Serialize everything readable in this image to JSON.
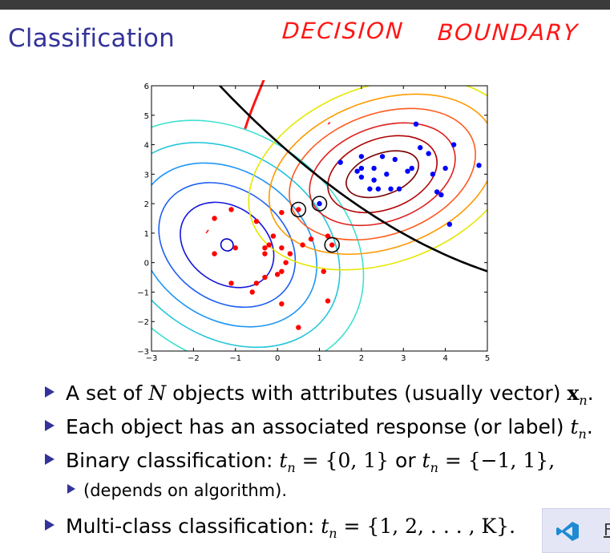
{
  "slide": {
    "title": "Classification",
    "handwriting": {
      "decision": "DECISION",
      "boundary": "BOUNDARY"
    },
    "colors": {
      "title": "#33339a",
      "annotation": "#ff1515",
      "class_a": "#ff0000",
      "class_b": "#0000ff"
    }
  },
  "chart_data": {
    "type": "scatter",
    "xlim": [
      -3,
      5
    ],
    "ylim": [
      -3,
      6
    ],
    "x_ticks": [
      "−3",
      "−2",
      "−1",
      "0",
      "1",
      "2",
      "3",
      "4",
      "5"
    ],
    "y_ticks": [
      "−3",
      "−2",
      "−1",
      "0",
      "1",
      "2",
      "3",
      "4",
      "5",
      "6"
    ],
    "series": [
      {
        "color": "#ff0000",
        "points": [
          [
            -1.5,
            1.5
          ],
          [
            -1.5,
            0.3
          ],
          [
            -1.0,
            0.5
          ],
          [
            -0.5,
            1.4
          ],
          [
            -0.1,
            0.9
          ],
          [
            0.1,
            1.7
          ],
          [
            -0.2,
            0.6
          ],
          [
            -0.3,
            0.5
          ],
          [
            -0.3,
            0.3
          ],
          [
            0.1,
            0.5
          ],
          [
            0.3,
            0.3
          ],
          [
            0.2,
            0.0
          ],
          [
            0.1,
            -0.3
          ],
          [
            0.0,
            -0.4
          ],
          [
            -0.3,
            -0.5
          ],
          [
            -1.1,
            -0.7
          ],
          [
            -0.5,
            -0.7
          ],
          [
            -0.6,
            -1.0
          ],
          [
            0.1,
            -1.4
          ],
          [
            0.5,
            -2.2
          ],
          [
            0.6,
            0.6
          ],
          [
            0.8,
            0.8
          ],
          [
            1.2,
            0.9
          ],
          [
            1.1,
            -0.3
          ],
          [
            1.2,
            -1.3
          ],
          [
            0.5,
            1.8
          ],
          [
            1.3,
            0.6
          ],
          [
            -1.1,
            1.8
          ]
        ]
      },
      {
        "color": "#0000ff",
        "points": [
          [
            1.0,
            2.0
          ],
          [
            1.5,
            3.4
          ],
          [
            2.0,
            3.6
          ],
          [
            2.0,
            3.2
          ],
          [
            1.9,
            3.1
          ],
          [
            2.0,
            2.9
          ],
          [
            2.2,
            2.5
          ],
          [
            2.3,
            2.8
          ],
          [
            2.4,
            2.5
          ],
          [
            2.3,
            3.2
          ],
          [
            2.6,
            3.0
          ],
          [
            2.7,
            2.5
          ],
          [
            2.9,
            2.5
          ],
          [
            2.8,
            3.5
          ],
          [
            3.1,
            3.1
          ],
          [
            3.2,
            3.2
          ],
          [
            3.4,
            3.9
          ],
          [
            3.3,
            4.7
          ],
          [
            3.6,
            3.7
          ],
          [
            3.7,
            3.0
          ],
          [
            3.8,
            2.4
          ],
          [
            3.9,
            2.3
          ],
          [
            4.2,
            4.0
          ],
          [
            4.0,
            3.2
          ],
          [
            4.8,
            3.3
          ],
          [
            4.1,
            1.3
          ],
          [
            2.5,
            3.6
          ]
        ]
      }
    ],
    "circled_points": [
      [
        0.5,
        1.8
      ],
      [
        1.0,
        2.0
      ],
      [
        1.3,
        0.6
      ]
    ]
  },
  "bullets": [
    {
      "text": "A set of ",
      "math": "N",
      "text2": " objects with attributes (usually vector) ",
      "bold": "x",
      "sub": "n",
      "tail": "."
    },
    {
      "text": "Each object has an associated response (or label) ",
      "math": "t",
      "sub": "n",
      "tail": "."
    },
    {
      "text": "Binary classification: ",
      "eq1": "t",
      "sub1": "n",
      "eq1b": " = {0, 1}",
      "mid": " or ",
      "eq2": "t",
      "sub2": "n",
      "eq2b": " = {−1, 1},",
      "tail": ""
    },
    {
      "text": "(depends on algorithm)."
    },
    {
      "text": "Multi-class classification: ",
      "eq": "t",
      "sub": "n",
      "eqb": " = {1, 2, . . . , K}."
    }
  ],
  "taskbar": {
    "app_label": "F",
    "icon": "vscode-icon"
  }
}
